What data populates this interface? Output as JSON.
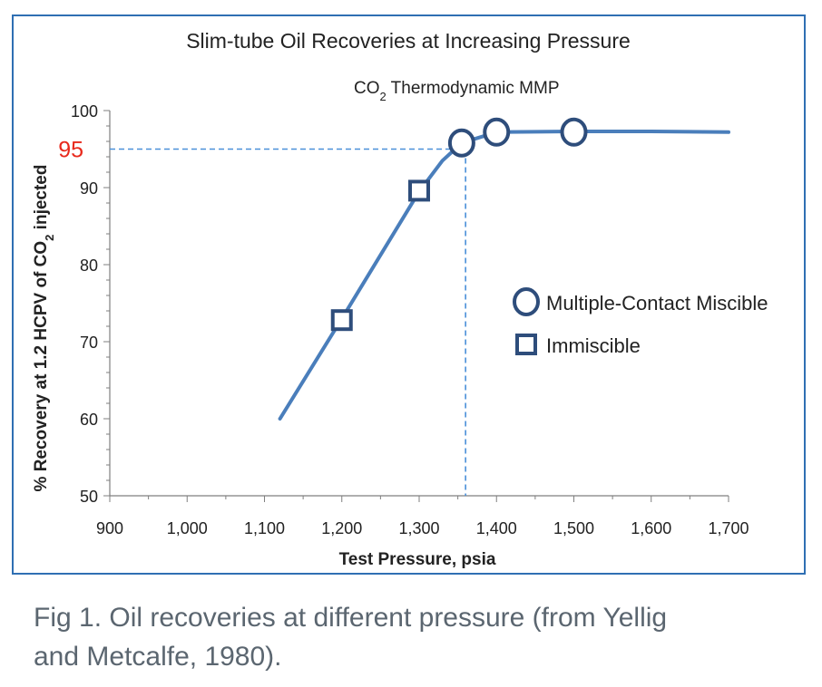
{
  "chart_data": {
    "type": "line",
    "title": "Slim-tube Oil Recoveries at Increasing Pressure",
    "xlabel": "Test Pressure, psia",
    "ylabel_parts": {
      "before": "% Recovery at 1.2 HCPV of CO",
      "sub": "2",
      "after": " injected"
    },
    "xlim": [
      900,
      1700
    ],
    "ylim": [
      50,
      100
    ],
    "x_ticks": [
      900,
      1000,
      1100,
      1200,
      1300,
      1400,
      1500,
      1600,
      1700
    ],
    "x_tick_labels": [
      "900",
      "1,000",
      "1,100",
      "1,200",
      "1,300",
      "1,400",
      "1,500",
      "1,600",
      "1,700"
    ],
    "y_ticks": [
      50,
      60,
      70,
      80,
      90,
      100
    ],
    "y_tick_labels": [
      "50",
      "60",
      "70",
      "80",
      "90",
      "100"
    ],
    "grid": false,
    "curve": {
      "x": [
        1120,
        1200,
        1300,
        1330,
        1355,
        1400,
        1500,
        1600,
        1700
      ],
      "y": [
        60,
        73,
        89.5,
        93.5,
        95.8,
        97.2,
        97.3,
        97.3,
        97.2
      ],
      "color": "#4a7ebb"
    },
    "series": [
      {
        "name": "Multiple-Contact Miscible",
        "marker": "circle",
        "x": [
          1355,
          1400,
          1500
        ],
        "y": [
          95.8,
          97.2,
          97.2
        ]
      },
      {
        "name": "Immiscible",
        "marker": "square",
        "x": [
          1200,
          1300
        ],
        "y": [
          72.8,
          89.6
        ]
      }
    ],
    "mmp": {
      "label_parts": {
        "before": "CO",
        "sub": "2",
        "after": " Thermodynamic MMP"
      },
      "x": 1360,
      "y": 95,
      "y_label": "95",
      "y_label_color": "#e8291c",
      "line_color": "#4a90d9"
    },
    "legend_position": "right",
    "marker_color": "#2e4d7b"
  },
  "caption": {
    "line1": "Fig 1. Oil recoveries at different pressure (from Yellig",
    "line2": "and Metcalfe, 1980)."
  }
}
